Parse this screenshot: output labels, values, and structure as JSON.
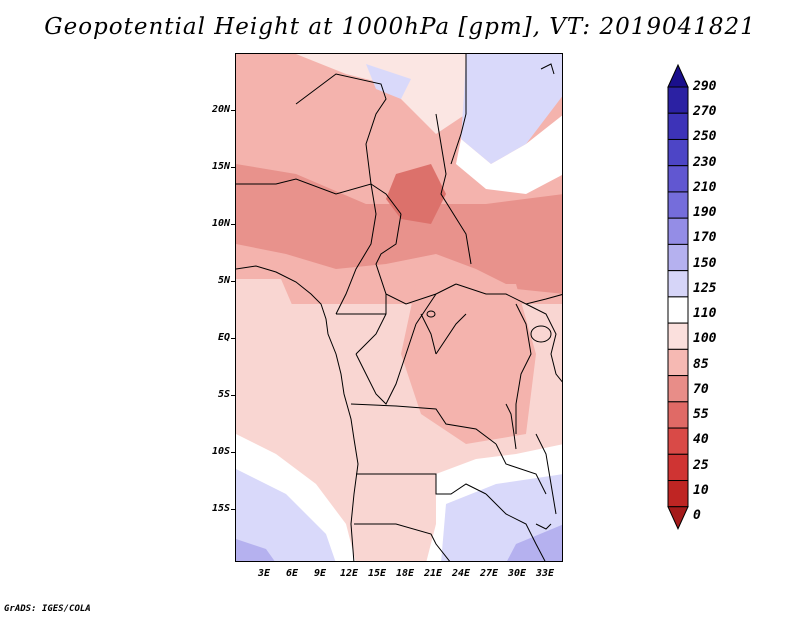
{
  "title": "Geopotential Height at 1000hPa [gpm], VT: 2019041821",
  "credit": "GrADS: IGES/COLA",
  "map": {
    "variable": "Geopotential Height",
    "level": "1000hPa",
    "units": "gpm",
    "valid_time": "2019041821",
    "lat_labels": [
      "20N",
      "15N",
      "10N",
      "5N",
      "EQ",
      "5S",
      "10S",
      "15S"
    ],
    "lon_labels": [
      "3E",
      "6E",
      "9E",
      "12E",
      "15E",
      "18E",
      "21E",
      "24E",
      "27E",
      "30E",
      "33E"
    ],
    "region": "Central Africa"
  },
  "colorbar": {
    "levels": [
      "290",
      "270",
      "250",
      "230",
      "210",
      "190",
      "170",
      "150",
      "125",
      "110",
      "100",
      "85",
      "70",
      "55",
      "40",
      "25",
      "10",
      "0"
    ],
    "colors": [
      "#1a0f8c",
      "#2b21a3",
      "#3d33b8",
      "#4d45c6",
      "#6157d1",
      "#756ddb",
      "#948de6",
      "#b5b1ef",
      "#d6d5f8",
      "#ffffff",
      "#fbe0dd",
      "#f6b9b3",
      "#e88d88",
      "#e06a66",
      "#d94a47",
      "#cf3433",
      "#bf2523",
      "#a51b1b"
    ]
  },
  "colors": {
    "low_blue": "#d9d9fa",
    "mid_pink": "#f9d6d2",
    "pink": "#f4b3ad",
    "red": "#e8928c",
    "deep_red": "#dc716b"
  }
}
